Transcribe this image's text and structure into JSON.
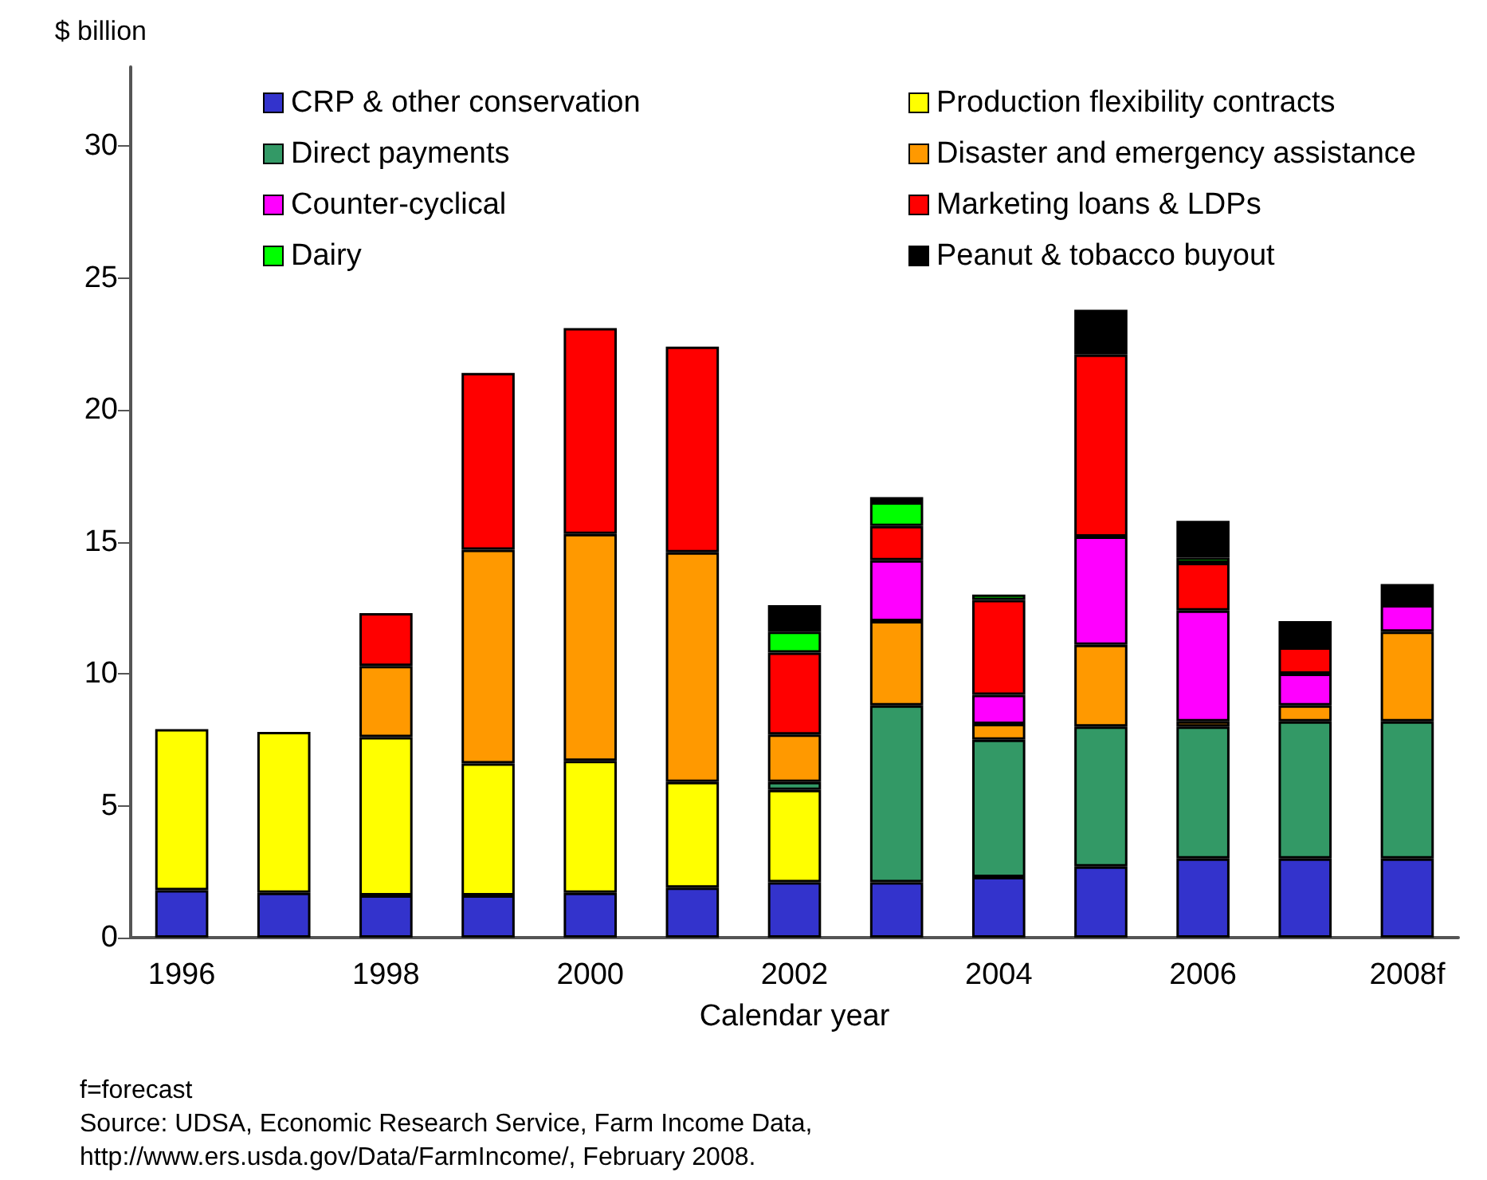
{
  "chart_data": {
    "type": "bar",
    "stacked": true,
    "ylabel": "$ billion",
    "xlabel": "Calendar year",
    "categories": [
      "1996",
      null,
      "1998",
      null,
      "2000",
      null,
      "2002",
      null,
      "2004",
      null,
      "2006",
      null,
      "2008f"
    ],
    "series": [
      {
        "name": "CRP & other conservation",
        "color": "#3333cc",
        "values": [
          1.8,
          1.7,
          1.6,
          1.6,
          1.7,
          1.9,
          2.1,
          2.1,
          2.3,
          2.7,
          3.0,
          3.0,
          3.0
        ]
      },
      {
        "name": "Production flexibility contracts",
        "color": "#ffff00",
        "values": [
          6.1,
          6.1,
          6.0,
          5.0,
          5.0,
          4.0,
          3.5,
          null,
          null,
          null,
          null,
          null,
          null
        ]
      },
      {
        "name": "Direct payments",
        "color": "#339966",
        "values": [
          null,
          null,
          null,
          null,
          null,
          null,
          0.3,
          6.7,
          5.2,
          5.3,
          5.0,
          5.2,
          5.2
        ]
      },
      {
        "name": "Disaster and emergency assistance",
        "color": "#ff9900",
        "values": [
          null,
          null,
          2.7,
          8.1,
          8.6,
          8.7,
          1.8,
          3.2,
          0.6,
          3.1,
          0.2,
          0.6,
          3.4
        ]
      },
      {
        "name": "Counter-cyclical",
        "color": "#ff00ff",
        "values": [
          null,
          null,
          null,
          null,
          null,
          null,
          null,
          2.3,
          1.1,
          4.1,
          4.2,
          1.2,
          1.0
        ]
      },
      {
        "name": "Marketing loans & LDPs",
        "color": "#ff0000",
        "values": [
          null,
          null,
          2.0,
          6.7,
          7.8,
          7.8,
          3.1,
          1.3,
          3.6,
          6.9,
          1.8,
          1.0,
          null
        ]
      },
      {
        "name": "Dairy",
        "color": "#00ff00",
        "values": [
          null,
          null,
          null,
          null,
          null,
          null,
          0.8,
          0.9,
          0.2,
          null,
          0.2,
          null,
          null
        ]
      },
      {
        "name": "Peanut & tobacco buyout",
        "color": "#000000",
        "values": [
          null,
          null,
          null,
          null,
          null,
          null,
          1.0,
          0.2,
          null,
          1.7,
          1.4,
          1.0,
          0.8
        ]
      }
    ],
    "ylim": [
      0,
      33
    ],
    "yticks": [
      0,
      5,
      10,
      15,
      20,
      25,
      30
    ],
    "grid": false,
    "legend": "top",
    "annotations": [
      "f=forecast",
      "Source: UDSA, Economic Research Service, Farm Income Data,",
      "http://www.ers.usda.gov/Data/FarmIncome/, February 2008."
    ]
  }
}
